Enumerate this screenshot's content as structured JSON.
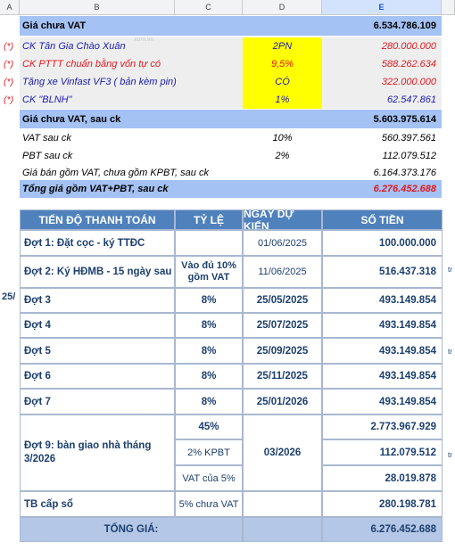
{
  "columns": [
    "A",
    "B",
    "C",
    "D",
    "E"
  ],
  "summary": {
    "price_before_vat_label": "Giá chưa VAT",
    "price_before_vat_value": "6.534.786.109",
    "discounts": [
      {
        "marker": "(*)",
        "label": "CK Tân Gia Chào Xuân",
        "rate": "2PN",
        "amount": "280.000.000",
        "color": "#1a1ab3"
      },
      {
        "marker": "(*)",
        "label": "CK PTTT chuẩn bằng vốn tự có",
        "rate": "9,5%",
        "amount": "588.262.634",
        "color": "#e0191f"
      },
      {
        "marker": "(*)",
        "label": "Tặng xe Vinfast VF3 ( bản kèm pin)",
        "rate": "CÓ",
        "amount": "322.000.000",
        "color": "#1a1ab3"
      },
      {
        "marker": "(*)",
        "label": "CK \"BLNH\"",
        "rate": "1%",
        "amount": "62.547.861",
        "color": "#1a1ab3"
      }
    ],
    "after_discount_label": "Giá chưa VAT, sau ck",
    "after_discount_value": "5.603.975.614",
    "vat_label": "VAT sau ck",
    "vat_rate": "10%",
    "vat_value": "560.397.561",
    "pbt_label": "PBT sau ck",
    "pbt_rate": "2%",
    "pbt_value": "112.079.512",
    "sale_price_label": "Giá bán gồm VAT, chưa gồm KPBT, sau ck",
    "sale_price_value": "6.164.373.176",
    "grand_total_label": "Tổng giá gồm VAT+PBT, sau ck",
    "grand_total_value": "6.276.452.688"
  },
  "payment": {
    "headers": [
      "TIẾN ĐỘ THANH TOÁN",
      "TỶ LỆ",
      "NGÀY DỰ KIẾN",
      "SỐ TIỀN"
    ],
    "rows": [
      {
        "name": "Đợt 1: Đặt cọc - ký TTĐC",
        "rate": "",
        "date": "01/06/2025",
        "amount": "100.000.000"
      },
      {
        "name": "Đợt 2: Ký HĐMB - 15 ngày sau",
        "rate": "Vào đủ 10% gồm VAT",
        "date": "11/06/2025",
        "amount": "516.437.318"
      },
      {
        "name": "Đợt 3",
        "rate": "8%",
        "date": "25/05/2025",
        "amount": "493.149.854"
      },
      {
        "name": "Đợt 4",
        "rate": "8%",
        "date": "25/07/2025",
        "amount": "493.149.854"
      },
      {
        "name": "Đợt 5",
        "rate": "8%",
        "date": "25/09/2025",
        "amount": "493.149.854"
      },
      {
        "name": "Đợt 6",
        "rate": "8%",
        "date": "25/11/2025",
        "amount": "493.149.854"
      },
      {
        "name": "Đợt 7",
        "rate": "8%",
        "date": "25/01/2026",
        "amount": "493.149.854"
      }
    ],
    "handover": {
      "name": "Đợt 9: bàn giao nhà tháng 3/2026",
      "date": "03/2026",
      "lines": [
        {
          "rate": "45%",
          "amount": "2.773.967.929"
        },
        {
          "rate": "2% KPBT",
          "amount": "112.079.512"
        },
        {
          "rate": "VAT của 5%",
          "amount": "28.019.878"
        }
      ]
    },
    "certificate": {
      "name": "TB cấp sổ",
      "rate": "5% chưa VAT",
      "amount": "280.198.781"
    },
    "total_label": "TỔNG GIÁ:",
    "total_value": "6.276.452.688"
  },
  "side_fragments": {
    "left": "25/",
    "right1": "tr",
    "right2": "tr",
    "right3": "tr"
  },
  "watermark": "xom.vn"
}
